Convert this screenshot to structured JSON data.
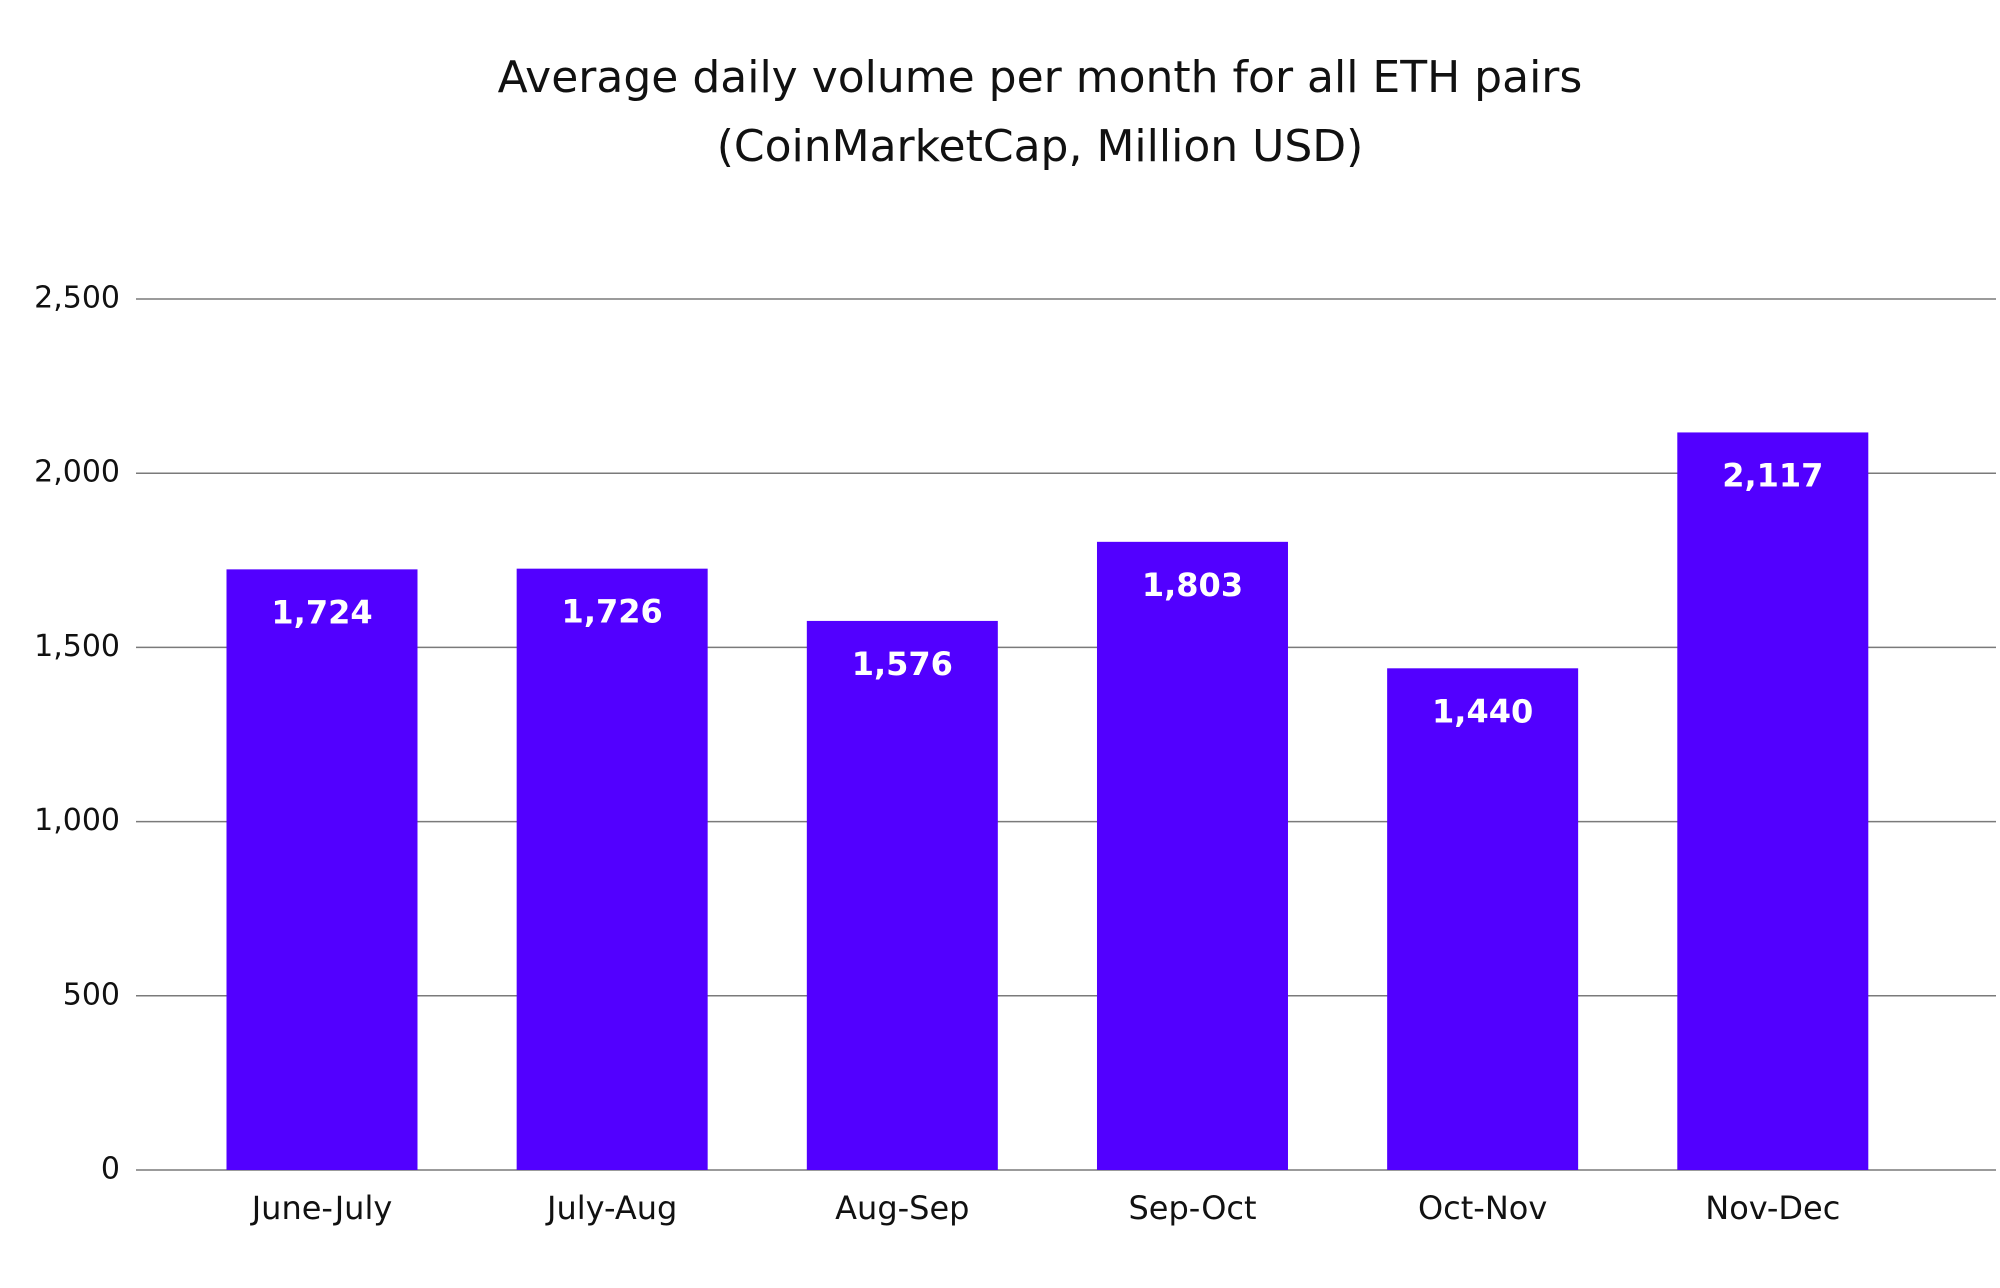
{
  "chart_data": {
    "type": "bar",
    "title": "Average daily volume per month for all ETH pairs",
    "subtitle": "(CoinMarketCap, Million USD)",
    "categories": [
      "June-July",
      "July-Aug",
      "Aug-Sep",
      "Sep-Oct",
      "Oct-Nov",
      "Nov-Dec"
    ],
    "values": [
      1724,
      1726,
      1576,
      1803,
      1440,
      2117
    ],
    "value_labels": [
      "1,724",
      "1,726",
      "1,576",
      "1,803",
      "1,440",
      "2,117"
    ],
    "color": "#5200ff",
    "ylim": [
      0,
      2500
    ],
    "yticks": [
      0,
      500,
      {
        "value": 1000,
        "label": "1,000"
      },
      {
        "value": 1500,
        "label": "1,500"
      },
      {
        "value": 2000,
        "label": "2,000"
      },
      {
        "value": 2500,
        "label": "2,500"
      }
    ],
    "grid": true
  }
}
